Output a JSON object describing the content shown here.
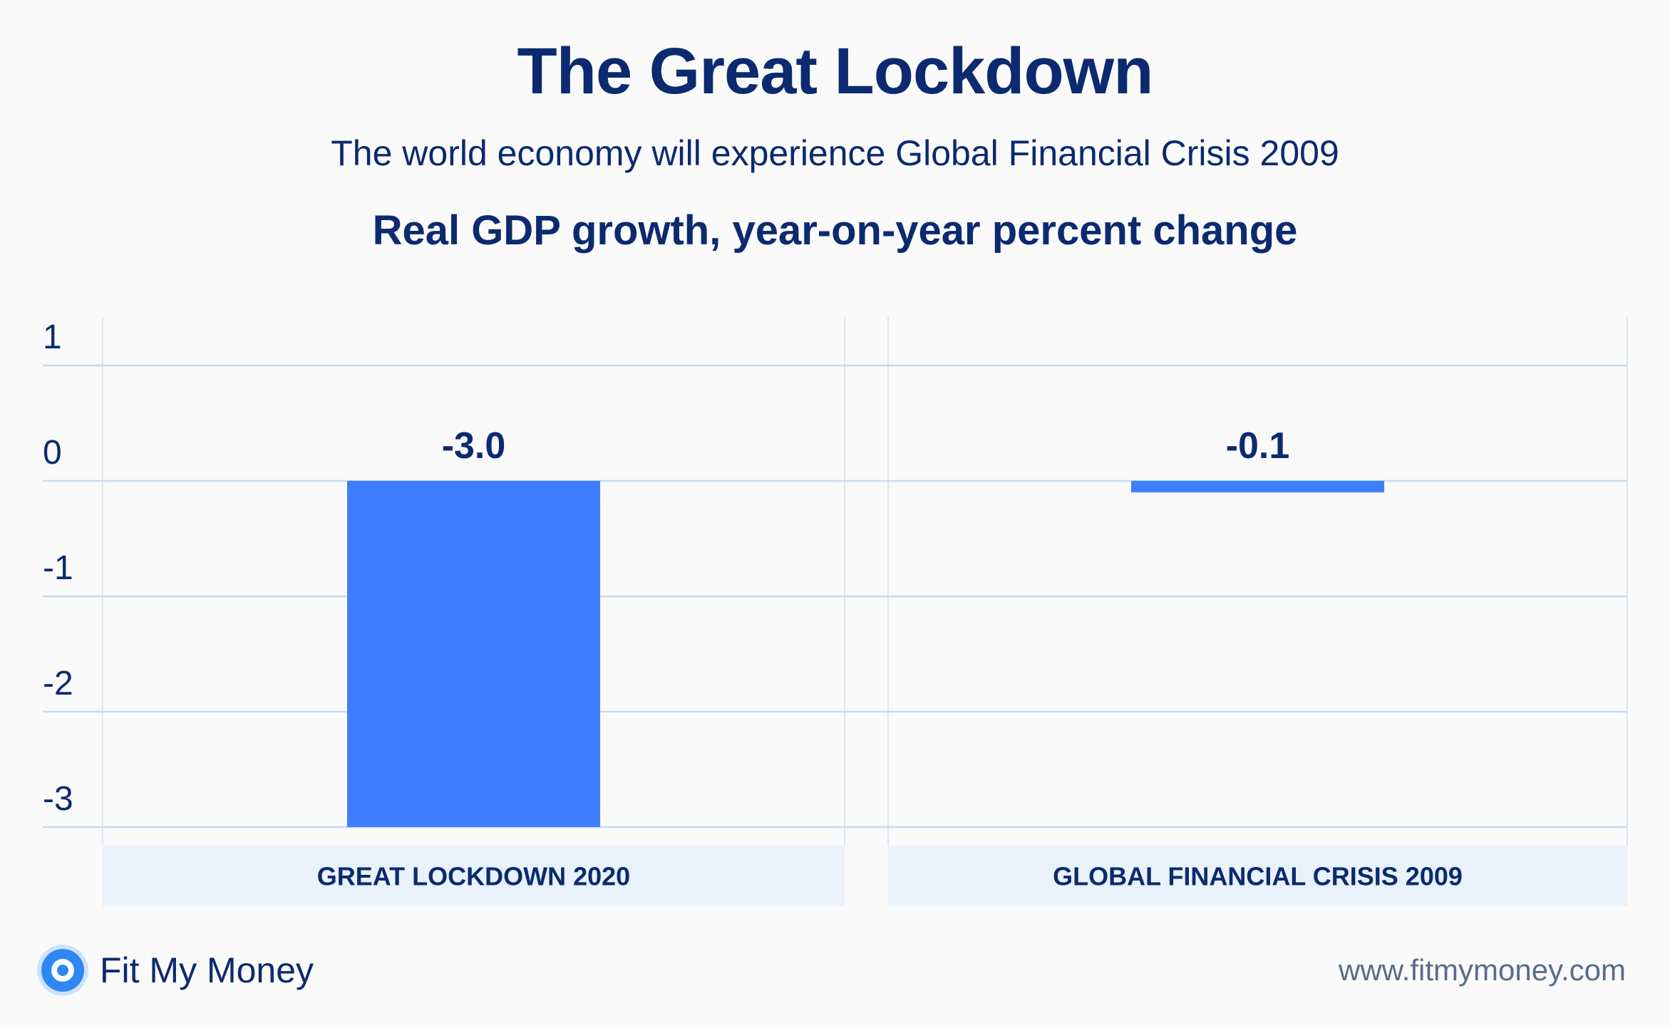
{
  "header": {
    "title": "The Great Lockdown",
    "subtitle": "The world economy will experience Global Financial Crisis 2009"
  },
  "chart_data": {
    "type": "bar",
    "title": "Real GDP growth, year-on-year percent change",
    "categories": [
      "GREAT LOCKDOWN 2020",
      "GLOBAL FINANCIAL CRISIS 2009"
    ],
    "values": [
      -3.0,
      -0.1
    ],
    "data_labels": [
      "-3.0",
      "-0.1"
    ],
    "yticks": [
      1,
      0,
      -1,
      -2,
      -3
    ],
    "ylim": [
      -3,
      1
    ],
    "xlabel": "",
    "ylabel": "",
    "grid": true
  },
  "colors": {
    "bar": "#3f7fff",
    "text": "#0b2a6f",
    "grid": "#c9daf0",
    "category_band": "#e9f1fa"
  },
  "footer": {
    "brand": "Fit My Money",
    "logo_icon": "target-icon",
    "website": "www.fitmymoney.com"
  }
}
